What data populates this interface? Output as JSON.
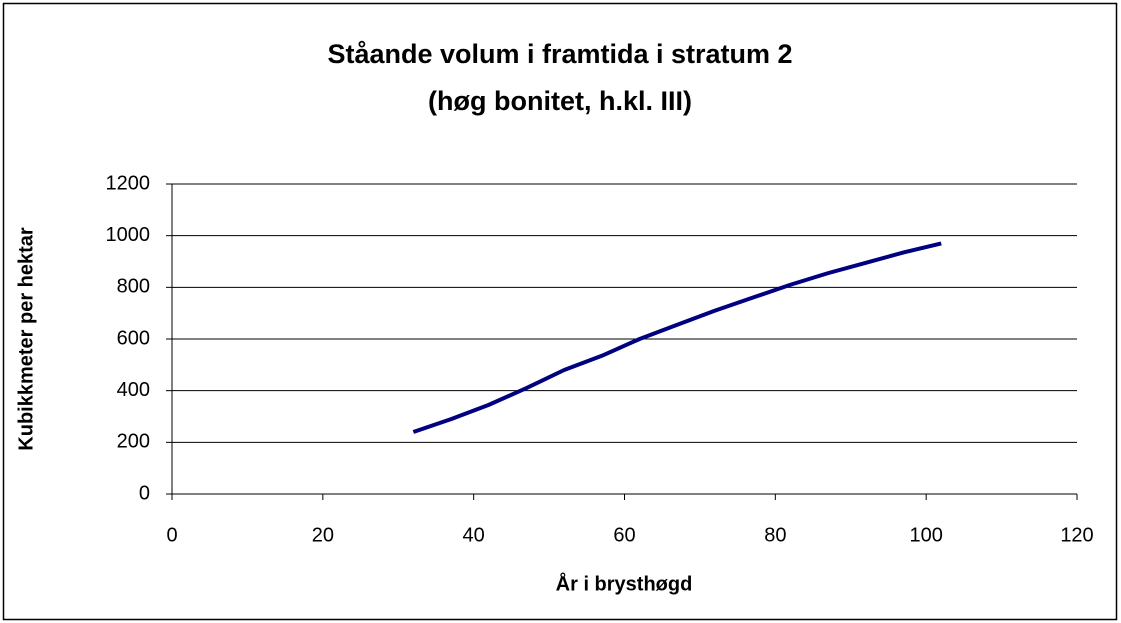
{
  "chart_data": {
    "type": "line",
    "title": "Ståande volum i framtida i stratum 2",
    "subtitle": "(høg bonitet, h.kl. III)",
    "x_label": "År i brysthøgd",
    "y_label": "Kubikkmeter per hektar",
    "x": [
      32,
      37,
      42,
      47,
      52,
      57,
      62,
      67,
      72,
      77,
      82,
      87,
      92,
      97,
      102
    ],
    "values": [
      240,
      290,
      345,
      410,
      480,
      535,
      600,
      655,
      710,
      760,
      810,
      855,
      895,
      935,
      970
    ],
    "color": "#000080",
    "xlim": [
      0,
      120
    ],
    "xticks": [
      0,
      20,
      40,
      60,
      80,
      100,
      120
    ],
    "ylim": [
      0,
      1200
    ],
    "yticks": [
      0,
      200,
      400,
      600,
      800,
      1000,
      1200
    ],
    "grid": true
  }
}
